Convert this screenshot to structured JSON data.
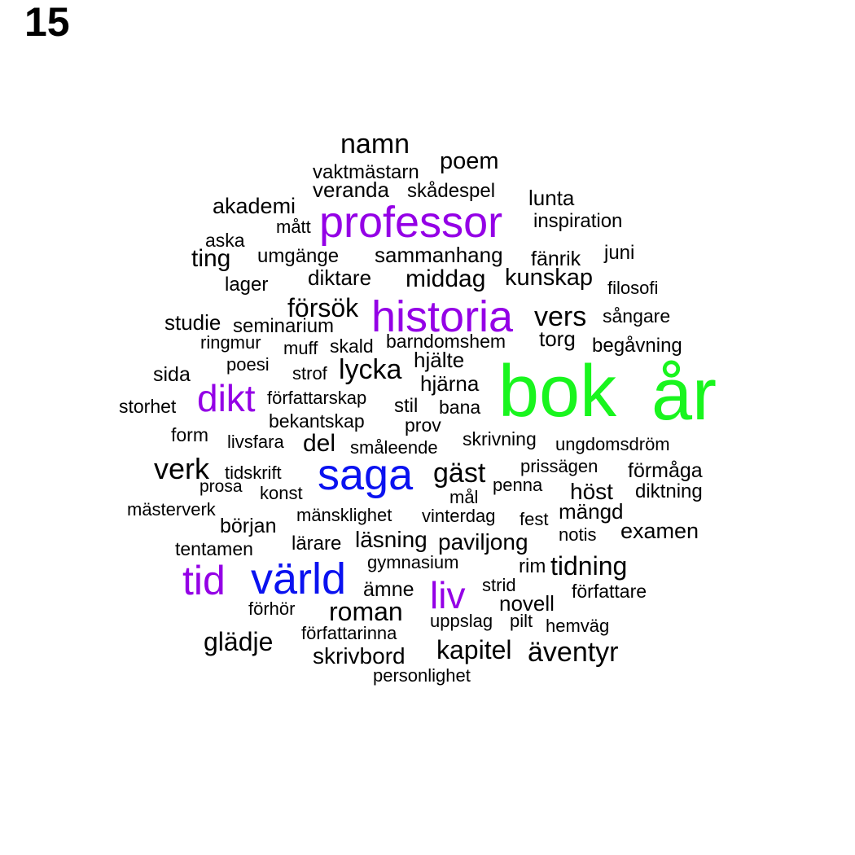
{
  "page_number": "15",
  "colors": {
    "black": "#000000",
    "purple": "#9400e6",
    "blue": "#0a12f0",
    "green": "#19f51e"
  },
  "words": [
    {
      "text": "bok",
      "size": "xxl",
      "color": "green"
    },
    {
      "text": "år",
      "size": "xxl",
      "color": "green"
    },
    {
      "text": "professor",
      "size": "l",
      "color": "purple"
    },
    {
      "text": "historia",
      "size": "l",
      "color": "purple"
    },
    {
      "text": "dikt",
      "size": "ml",
      "color": "purple"
    },
    {
      "text": "tid",
      "size": "ml",
      "color": "purple"
    },
    {
      "text": "liv",
      "size": "ml",
      "color": "purple"
    },
    {
      "text": "saga",
      "size": "l",
      "color": "blue"
    },
    {
      "text": "värld",
      "size": "l",
      "color": "blue"
    },
    {
      "text": "namn",
      "size": "m",
      "color": "black"
    },
    {
      "text": "poem",
      "size": "s",
      "color": "black"
    },
    {
      "text": "vaktmästarn",
      "size": "xs",
      "color": "black"
    },
    {
      "text": "veranda",
      "size": "s",
      "color": "black"
    },
    {
      "text": "skådespel",
      "size": "xs",
      "color": "black"
    },
    {
      "text": "lunta",
      "size": "s",
      "color": "black"
    },
    {
      "text": "akademi",
      "size": "s",
      "color": "black"
    },
    {
      "text": "inspiration",
      "size": "xs",
      "color": "black"
    },
    {
      "text": "mått",
      "size": "xs",
      "color": "black"
    },
    {
      "text": "aska",
      "size": "xs",
      "color": "black"
    },
    {
      "text": "ting",
      "size": "s",
      "color": "black"
    },
    {
      "text": "umgänge",
      "size": "xs",
      "color": "black"
    },
    {
      "text": "sammanhang",
      "size": "s",
      "color": "black"
    },
    {
      "text": "fänrik",
      "size": "s",
      "color": "black"
    },
    {
      "text": "juni",
      "size": "xs",
      "color": "black"
    },
    {
      "text": "lager",
      "size": "xs",
      "color": "black"
    },
    {
      "text": "diktare",
      "size": "s",
      "color": "black"
    },
    {
      "text": "middag",
      "size": "s",
      "color": "black"
    },
    {
      "text": "kunskap",
      "size": "s",
      "color": "black"
    },
    {
      "text": "filosofi",
      "size": "xs",
      "color": "black"
    },
    {
      "text": "försök",
      "size": "s",
      "color": "black"
    },
    {
      "text": "vers",
      "size": "m",
      "color": "black"
    },
    {
      "text": "sångare",
      "size": "xs",
      "color": "black"
    },
    {
      "text": "studie",
      "size": "xs",
      "color": "black"
    },
    {
      "text": "seminarium",
      "size": "xs",
      "color": "black"
    },
    {
      "text": "torg",
      "size": "s",
      "color": "black"
    },
    {
      "text": "ringmur",
      "size": "xs",
      "color": "black"
    },
    {
      "text": "muff",
      "size": "xs",
      "color": "black"
    },
    {
      "text": "skald",
      "size": "xs",
      "color": "black"
    },
    {
      "text": "barndomshem",
      "size": "xs",
      "color": "black"
    },
    {
      "text": "begåvning",
      "size": "xs",
      "color": "black"
    },
    {
      "text": "poesi",
      "size": "xs",
      "color": "black"
    },
    {
      "text": "hjälte",
      "size": "s",
      "color": "black"
    },
    {
      "text": "sida",
      "size": "xs",
      "color": "black"
    },
    {
      "text": "strof",
      "size": "xs",
      "color": "black"
    },
    {
      "text": "lycka",
      "size": "m",
      "color": "black"
    },
    {
      "text": "hjärna",
      "size": "s",
      "color": "black"
    },
    {
      "text": "författarskap",
      "size": "xs",
      "color": "black"
    },
    {
      "text": "storhet",
      "size": "xs",
      "color": "black"
    },
    {
      "text": "stil",
      "size": "xs",
      "color": "black"
    },
    {
      "text": "bana",
      "size": "xs",
      "color": "black"
    },
    {
      "text": "bekantskap",
      "size": "xs",
      "color": "black"
    },
    {
      "text": "prov",
      "size": "xs",
      "color": "black"
    },
    {
      "text": "form",
      "size": "xs",
      "color": "black"
    },
    {
      "text": "livsfara",
      "size": "xs",
      "color": "black"
    },
    {
      "text": "del",
      "size": "m",
      "color": "black"
    },
    {
      "text": "småleende",
      "size": "xs",
      "color": "black"
    },
    {
      "text": "skrivning",
      "size": "xs",
      "color": "black"
    },
    {
      "text": "ungdomsdröm",
      "size": "xs",
      "color": "black"
    },
    {
      "text": "verk",
      "size": "m",
      "color": "black"
    },
    {
      "text": "tidskrift",
      "size": "xs",
      "color": "black"
    },
    {
      "text": "gäst",
      "size": "m",
      "color": "black"
    },
    {
      "text": "prissägen",
      "size": "xs",
      "color": "black"
    },
    {
      "text": "förmåga",
      "size": "s",
      "color": "black"
    },
    {
      "text": "prosa",
      "size": "xs",
      "color": "black"
    },
    {
      "text": "konst",
      "size": "xs",
      "color": "black"
    },
    {
      "text": "mål",
      "size": "xs",
      "color": "black"
    },
    {
      "text": "penna",
      "size": "xs",
      "color": "black"
    },
    {
      "text": "höst",
      "size": "s",
      "color": "black"
    },
    {
      "text": "diktning",
      "size": "xs",
      "color": "black"
    },
    {
      "text": "mästerverk",
      "size": "xs",
      "color": "black"
    },
    {
      "text": "mänsklighet",
      "size": "xs",
      "color": "black"
    },
    {
      "text": "vinterdag",
      "size": "xs",
      "color": "black"
    },
    {
      "text": "fest",
      "size": "xs",
      "color": "black"
    },
    {
      "text": "mängd",
      "size": "s",
      "color": "black"
    },
    {
      "text": "början",
      "size": "s",
      "color": "black"
    },
    {
      "text": "notis",
      "size": "xs",
      "color": "black"
    },
    {
      "text": "examen",
      "size": "s",
      "color": "black"
    },
    {
      "text": "lärare",
      "size": "xs",
      "color": "black"
    },
    {
      "text": "läsning",
      "size": "s",
      "color": "black"
    },
    {
      "text": "paviljong",
      "size": "s",
      "color": "black"
    },
    {
      "text": "tentamen",
      "size": "xs",
      "color": "black"
    },
    {
      "text": "gymnasium",
      "size": "xs",
      "color": "black"
    },
    {
      "text": "rim",
      "size": "xs",
      "color": "black"
    },
    {
      "text": "tidning",
      "size": "m",
      "color": "black"
    },
    {
      "text": "strid",
      "size": "xs",
      "color": "black"
    },
    {
      "text": "ämne",
      "size": "s",
      "color": "black"
    },
    {
      "text": "författare",
      "size": "xs",
      "color": "black"
    },
    {
      "text": "förhör",
      "size": "xs",
      "color": "black"
    },
    {
      "text": "roman",
      "size": "m",
      "color": "black"
    },
    {
      "text": "novell",
      "size": "s",
      "color": "black"
    },
    {
      "text": "uppslag",
      "size": "xs",
      "color": "black"
    },
    {
      "text": "pilt",
      "size": "xs",
      "color": "black"
    },
    {
      "text": "hemväg",
      "size": "xs",
      "color": "black"
    },
    {
      "text": "författarinna",
      "size": "xs",
      "color": "black"
    },
    {
      "text": "glädje",
      "size": "m",
      "color": "black"
    },
    {
      "text": "kapitel",
      "size": "m",
      "color": "black"
    },
    {
      "text": "äventyr",
      "size": "m",
      "color": "black"
    },
    {
      "text": "skrivbord",
      "size": "m",
      "color": "black"
    },
    {
      "text": "personlighet",
      "size": "xs",
      "color": "black"
    }
  ]
}
